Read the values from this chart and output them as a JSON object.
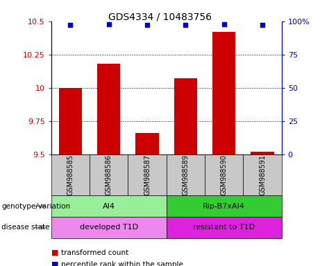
{
  "title": "GDS4334 / 10483756",
  "samples": [
    "GSM988585",
    "GSM988586",
    "GSM988587",
    "GSM988589",
    "GSM988590",
    "GSM988591"
  ],
  "bar_values": [
    10.0,
    10.18,
    9.66,
    10.07,
    10.42,
    9.52
  ],
  "percentile_values": [
    97,
    98,
    97,
    97,
    98,
    97
  ],
  "ylim_left": [
    9.5,
    10.5
  ],
  "ylim_right": [
    0,
    100
  ],
  "yticks_left": [
    9.5,
    9.75,
    10.0,
    10.25,
    10.5
  ],
  "ytick_labels_left": [
    "9.5",
    "9.75",
    "10",
    "10.25",
    "10.5"
  ],
  "yticks_right": [
    0,
    25,
    50,
    75,
    100
  ],
  "ytick_labels_right": [
    "0",
    "25",
    "50",
    "75",
    "100%"
  ],
  "bar_color": "#cc0000",
  "dot_color": "#0000cc",
  "bar_width": 0.6,
  "genotype_groups": [
    {
      "label": "AI4",
      "start": 0,
      "end": 3,
      "color": "#99ee99"
    },
    {
      "label": "Rip-B7xAI4",
      "start": 3,
      "end": 6,
      "color": "#33cc33"
    }
  ],
  "disease_groups": [
    {
      "label": "developed T1D",
      "start": 0,
      "end": 3,
      "color": "#ee88ee"
    },
    {
      "label": "resistant to T1D",
      "start": 3,
      "end": 6,
      "color": "#dd22dd"
    }
  ],
  "row_labels": [
    "genotype/variation",
    "disease state"
  ],
  "legend_items": [
    {
      "label": "transformed count",
      "color": "#cc0000"
    },
    {
      "label": "percentile rank within the sample",
      "color": "#0000cc"
    }
  ],
  "label_box_color": "#c8c8c8",
  "left_axis_color": "#cc0000",
  "right_axis_color": "#0000cc"
}
